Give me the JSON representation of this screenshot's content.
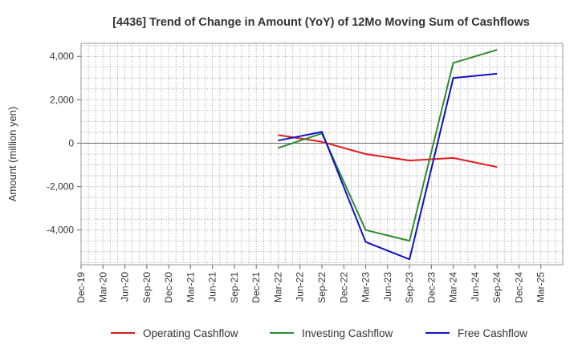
{
  "chart_data": {
    "type": "line",
    "title": "[4436]  Trend of Change in Amount (YoY) of 12Mo Moving Sum of Cashflows",
    "xlabel": "",
    "ylabel": "Amount (million yen)",
    "ylim": [
      -5600,
      4600
    ],
    "yticks": [
      -4000,
      -2000,
      0,
      2000,
      4000
    ],
    "ytick_labels": [
      "-4,000",
      "-2,000",
      "0",
      "2,000",
      "4,000"
    ],
    "categories": [
      "Dec-19",
      "Mar-20",
      "Jun-20",
      "Sep-20",
      "Dec-20",
      "Mar-21",
      "Jun-21",
      "Sep-21",
      "Dec-21",
      "Mar-22",
      "Jun-22",
      "Sep-22",
      "Dec-22",
      "Mar-23",
      "Jun-23",
      "Sep-23",
      "Dec-23",
      "Mar-24",
      "Jun-24",
      "Sep-24",
      "Dec-24",
      "Mar-25"
    ],
    "x_axis_end_label": "Mar-25",
    "grid": true,
    "legend_position": "bottom",
    "series": [
      {
        "name": "Operating Cashflow",
        "color": "#e31a1c",
        "values": [
          null,
          null,
          null,
          null,
          null,
          null,
          null,
          null,
          null,
          380,
          null,
          60,
          null,
          -500,
          null,
          -800,
          null,
          -680,
          null,
          -1100,
          null,
          null
        ]
      },
      {
        "name": "Investing Cashflow",
        "color": "#2e8b2e",
        "values": [
          null,
          null,
          null,
          null,
          null,
          null,
          null,
          null,
          null,
          -220,
          null,
          450,
          null,
          -4000,
          null,
          -4500,
          null,
          3700,
          null,
          4300,
          null,
          null
        ]
      },
      {
        "name": "Free Cashflow",
        "color": "#1010c8",
        "values": [
          null,
          null,
          null,
          null,
          null,
          null,
          null,
          null,
          null,
          120,
          null,
          520,
          null,
          -4550,
          null,
          -5350,
          null,
          3000,
          null,
          3200,
          null,
          null
        ]
      }
    ]
  }
}
